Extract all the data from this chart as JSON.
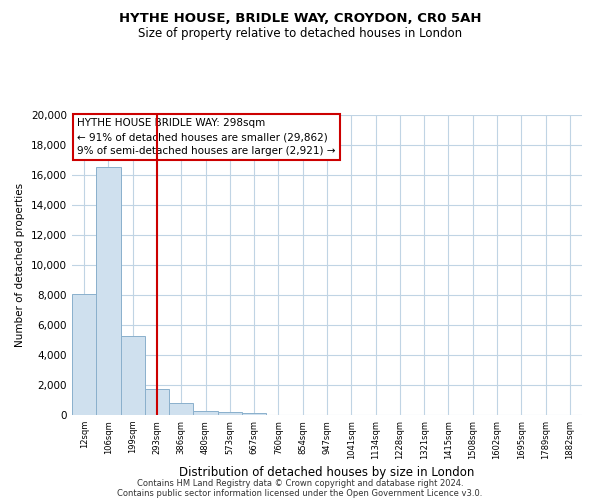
{
  "title": "HYTHE HOUSE, BRIDLE WAY, CROYDON, CR0 5AH",
  "subtitle": "Size of property relative to detached houses in London",
  "xlabel": "Distribution of detached houses by size in London",
  "ylabel": "Number of detached properties",
  "bar_labels": [
    "12sqm",
    "106sqm",
    "199sqm",
    "293sqm",
    "386sqm",
    "480sqm",
    "573sqm",
    "667sqm",
    "760sqm",
    "854sqm",
    "947sqm",
    "1041sqm",
    "1134sqm",
    "1228sqm",
    "1321sqm",
    "1415sqm",
    "1508sqm",
    "1602sqm",
    "1695sqm",
    "1789sqm",
    "1882sqm"
  ],
  "bar_values": [
    8100,
    16500,
    5300,
    1750,
    800,
    300,
    200,
    150,
    0,
    0,
    0,
    0,
    0,
    0,
    0,
    0,
    0,
    0,
    0,
    0,
    0
  ],
  "bar_color": "#cfe0ee",
  "bar_edge_color": "#8ab0cc",
  "vline_color": "#cc0000",
  "vline_pos": 3.5,
  "ylim": [
    0,
    20000
  ],
  "yticks": [
    0,
    2000,
    4000,
    6000,
    8000,
    10000,
    12000,
    14000,
    16000,
    18000,
    20000
  ],
  "annotation_title": "HYTHE HOUSE BRIDLE WAY: 298sqm",
  "annotation_line1": "← 91% of detached houses are smaller (29,862)",
  "annotation_line2": "9% of semi-detached houses are larger (2,921) →",
  "annotation_box_color": "white",
  "annotation_box_edge": "#cc0000",
  "footer_line1": "Contains HM Land Registry data © Crown copyright and database right 2024.",
  "footer_line2": "Contains public sector information licensed under the Open Government Licence v3.0.",
  "bg_color": "white",
  "grid_color": "#c0d4e4"
}
